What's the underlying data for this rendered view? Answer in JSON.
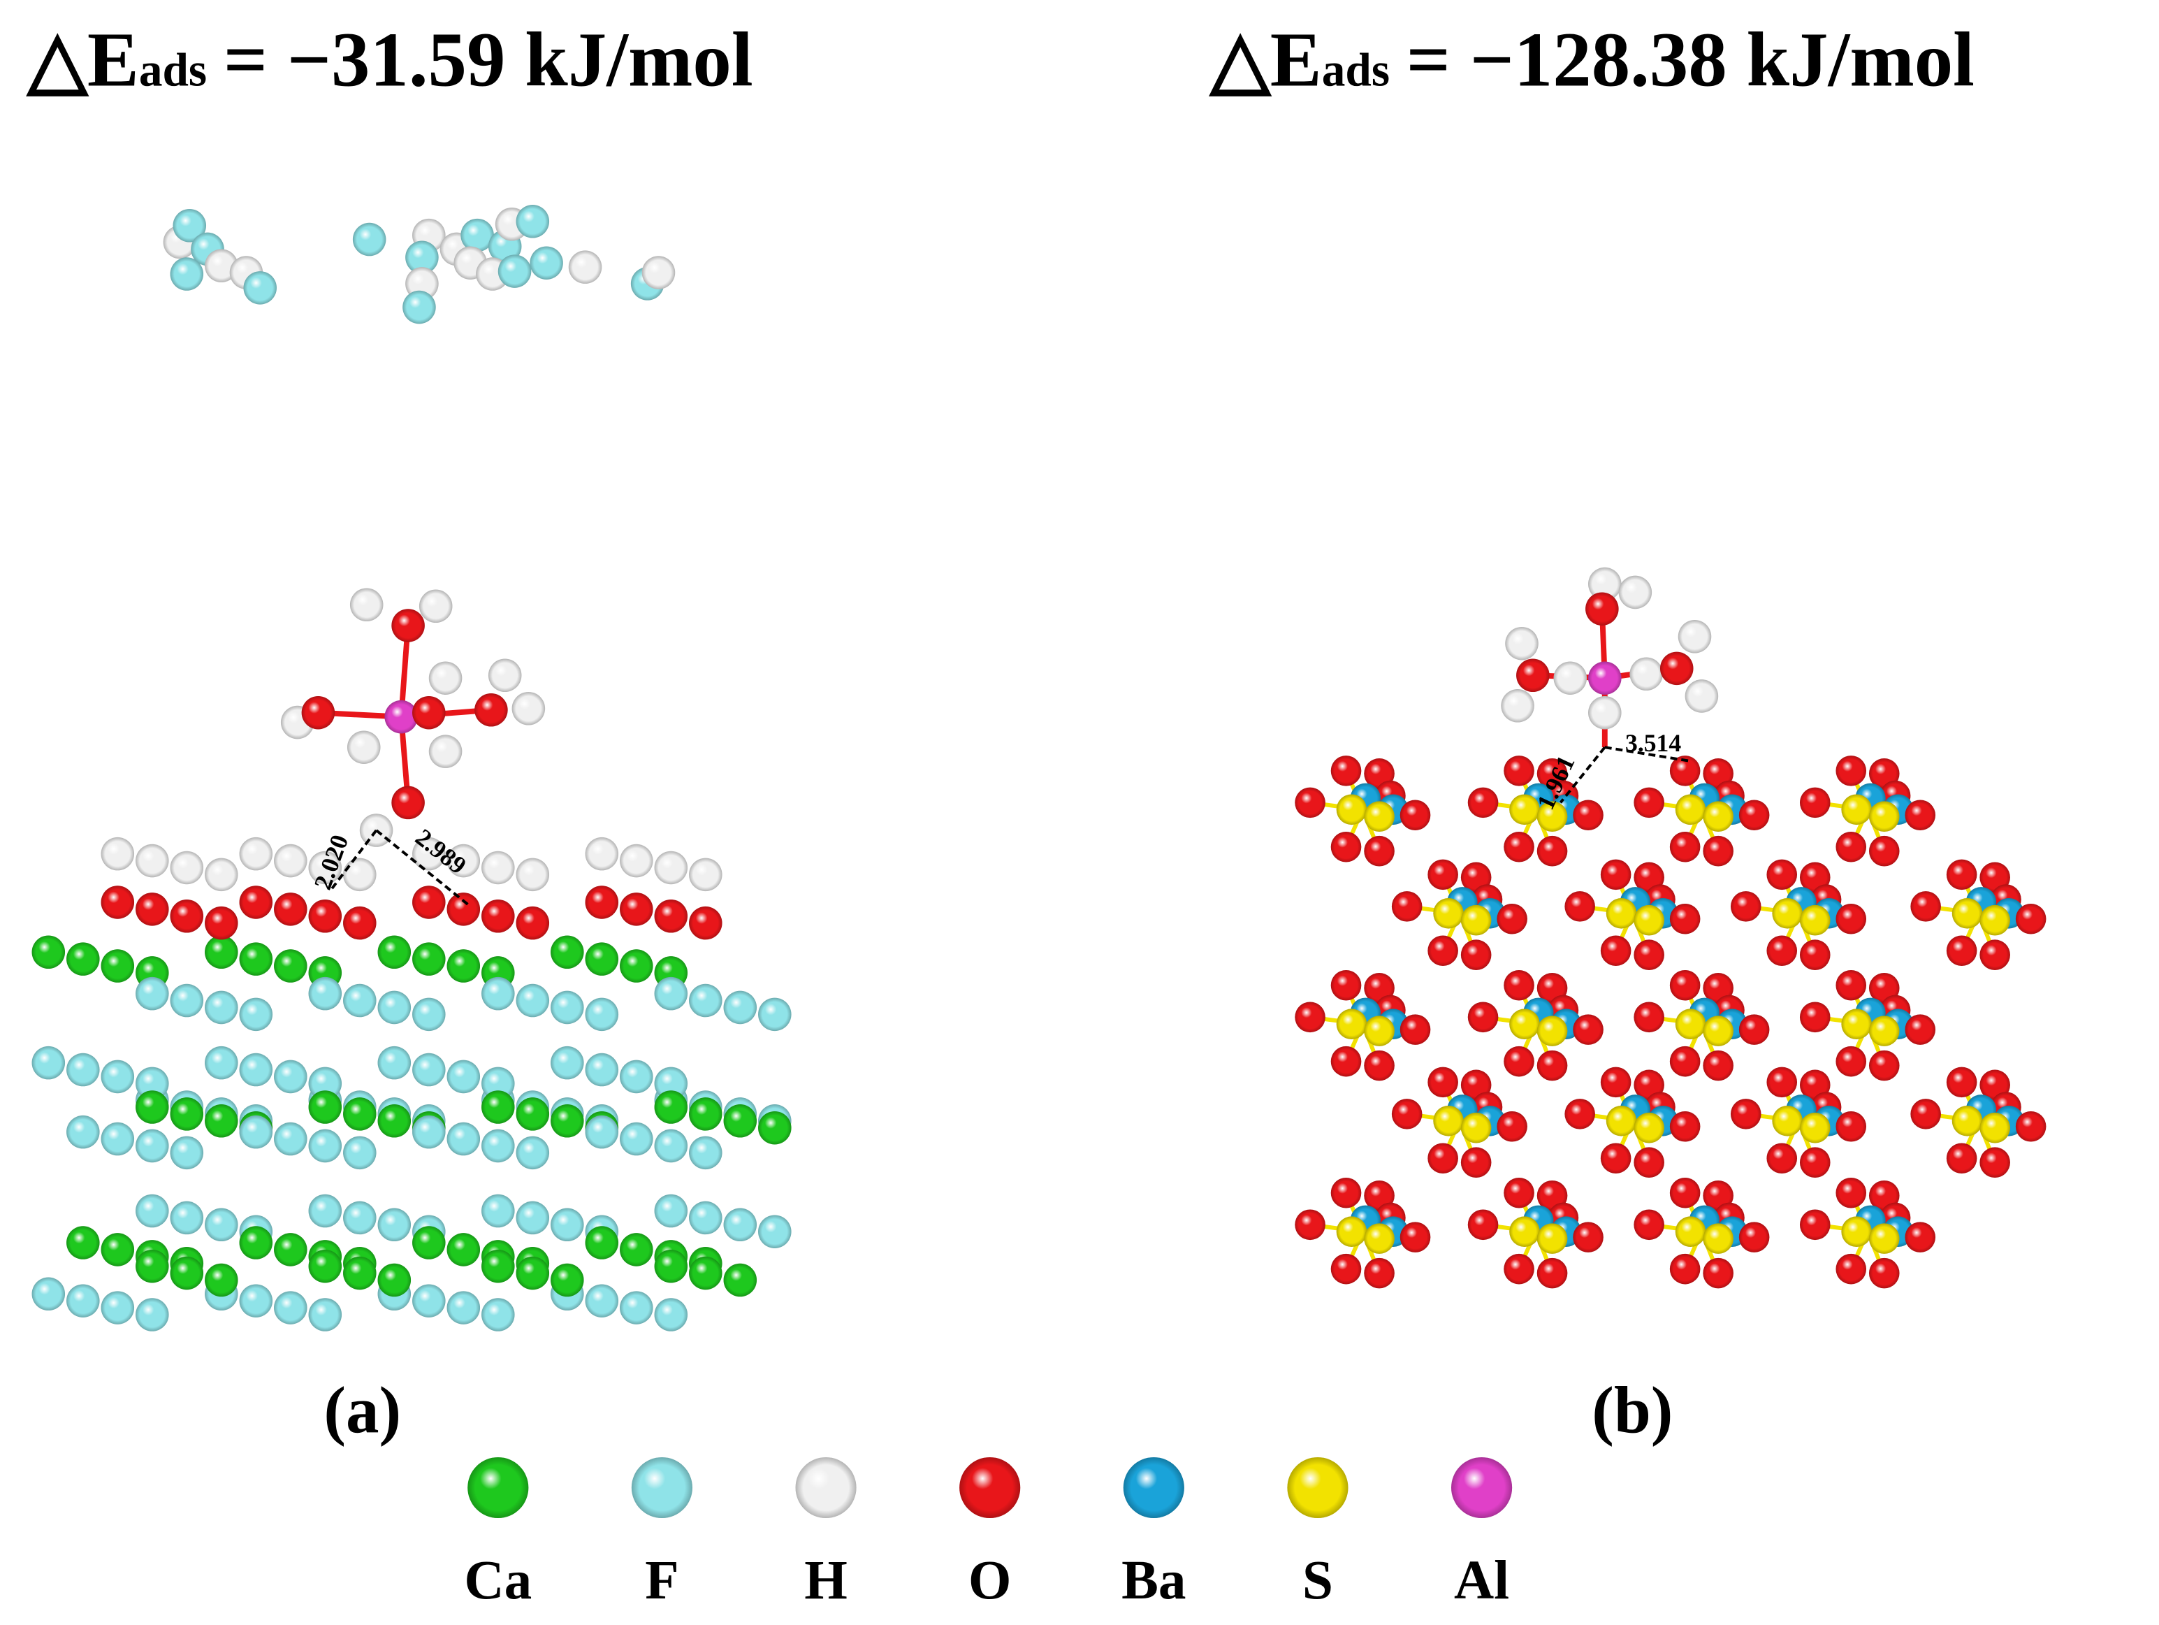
{
  "panels": [
    {
      "title": {
        "symbol": "△E",
        "subscript": "ads",
        "value": "= −31.59 kJ/mol"
      },
      "label": "(a)",
      "distances": [
        "2.020",
        "2.989"
      ]
    },
    {
      "title": {
        "symbol": "△E",
        "subscript": "ads",
        "value": "= −128.38 kJ/mol"
      },
      "label": "(b)",
      "distances": [
        "1.961",
        "3.514"
      ]
    }
  ],
  "legend": [
    {
      "name": "Ca",
      "color": "#1ec81e"
    },
    {
      "name": "F",
      "color": "#8fe3e8"
    },
    {
      "name": "H",
      "color": "#f0f0f0"
    },
    {
      "name": "O",
      "color": "#e8161a"
    },
    {
      "name": "Ba",
      "color": "#1aa3d9"
    },
    {
      "name": "S",
      "color": "#f2e200"
    },
    {
      "name": "Al",
      "color": "#e040c8"
    }
  ]
}
